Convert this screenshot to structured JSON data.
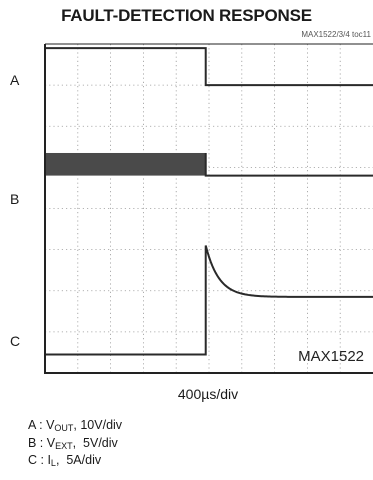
{
  "chart_data": {
    "type": "line",
    "title": "FAULT-DETECTION RESPONSE",
    "figure_code": "MAX1522/3/4 toc11",
    "xlabel": "400µs/div",
    "watermark": "MAX1522",
    "grid": true,
    "grid_divisions": {
      "x": 10,
      "y": 8
    },
    "fault_time_div": 4.9,
    "series": [
      {
        "name": "A",
        "trace": "V_OUT",
        "scale": "10V/div",
        "baseline_div": 7.0,
        "before_div": 0.9,
        "after_div": 0.0
      },
      {
        "name": "B",
        "trace": "V_EXT",
        "scale": "5V/div",
        "baseline_div": 4.8,
        "before_div": 0.55,
        "after_div": 0.0,
        "switching_before_fault": true
      },
      {
        "name": "C",
        "trace": "I_L",
        "scale": "5A/div",
        "baseline_div": 0.4,
        "before_div": 0.05,
        "peak_after_div": 2.7,
        "settled_div": 1.45,
        "decay_time_div": 1.2
      }
    ],
    "legend": [
      {
        "prefix": "A : V",
        "sub": "OUT",
        "suffix": ", 10V/div"
      },
      {
        "prefix": "B : V",
        "sub": "EXT",
        "suffix": ",  5V/div"
      },
      {
        "prefix": "C : I",
        "sub": "L",
        "suffix": ",  5A/div"
      }
    ]
  }
}
